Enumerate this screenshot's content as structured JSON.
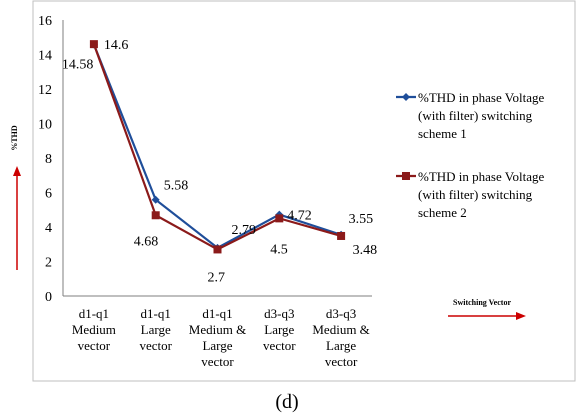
{
  "chart_data": {
    "type": "line",
    "categories": [
      [
        "d1-q1",
        "Medium",
        "vector"
      ],
      [
        "d1-q1",
        "Large",
        "vector"
      ],
      [
        "d1-q1",
        "Medium &",
        "Large",
        "vector"
      ],
      [
        "d3-q3",
        "Large",
        "vector"
      ],
      [
        "d3-q3",
        "Medium &",
        "Large",
        "vector"
      ]
    ],
    "series": [
      {
        "name": [
          "%THD in phase Voltage",
          "(with filter) switching",
          "scheme 1"
        ],
        "values": [
          14.58,
          5.58,
          2.79,
          4.72,
          3.55
        ],
        "color": "#1f4e9a",
        "marker": "diamond"
      },
      {
        "name": [
          "%THD in phase Voltage",
          "(with filter) switching",
          "scheme 2"
        ],
        "values": [
          14.6,
          4.68,
          2.7,
          4.5,
          3.48
        ],
        "color": "#8b1a1a",
        "marker": "square"
      }
    ],
    "data_labels": [
      {
        "text": "14.58",
        "series": 0,
        "index": 0
      },
      {
        "text": "14.6",
        "series": 1,
        "index": 0
      },
      {
        "text": "5.58",
        "series": 0,
        "index": 1
      },
      {
        "text": "4.68",
        "series": 1,
        "index": 1
      },
      {
        "text": "2.79",
        "series": 0,
        "index": 2
      },
      {
        "text": "2.7",
        "series": 1,
        "index": 2
      },
      {
        "text": "4.72",
        "series": 0,
        "index": 3
      },
      {
        "text": "4.5",
        "series": 1,
        "index": 3
      },
      {
        "text": "3.55",
        "series": 0,
        "index": 4
      },
      {
        "text": "3.48",
        "series": 1,
        "index": 4
      }
    ],
    "ylabel": "%THD",
    "xlabel": "Switching Vector",
    "ylim": [
      0,
      16
    ],
    "yticks": [
      0,
      2,
      4,
      6,
      8,
      10,
      12,
      14,
      16
    ],
    "grid": false,
    "legend": "right",
    "arrow_color": "#cc0000"
  },
  "caption": "(d)"
}
